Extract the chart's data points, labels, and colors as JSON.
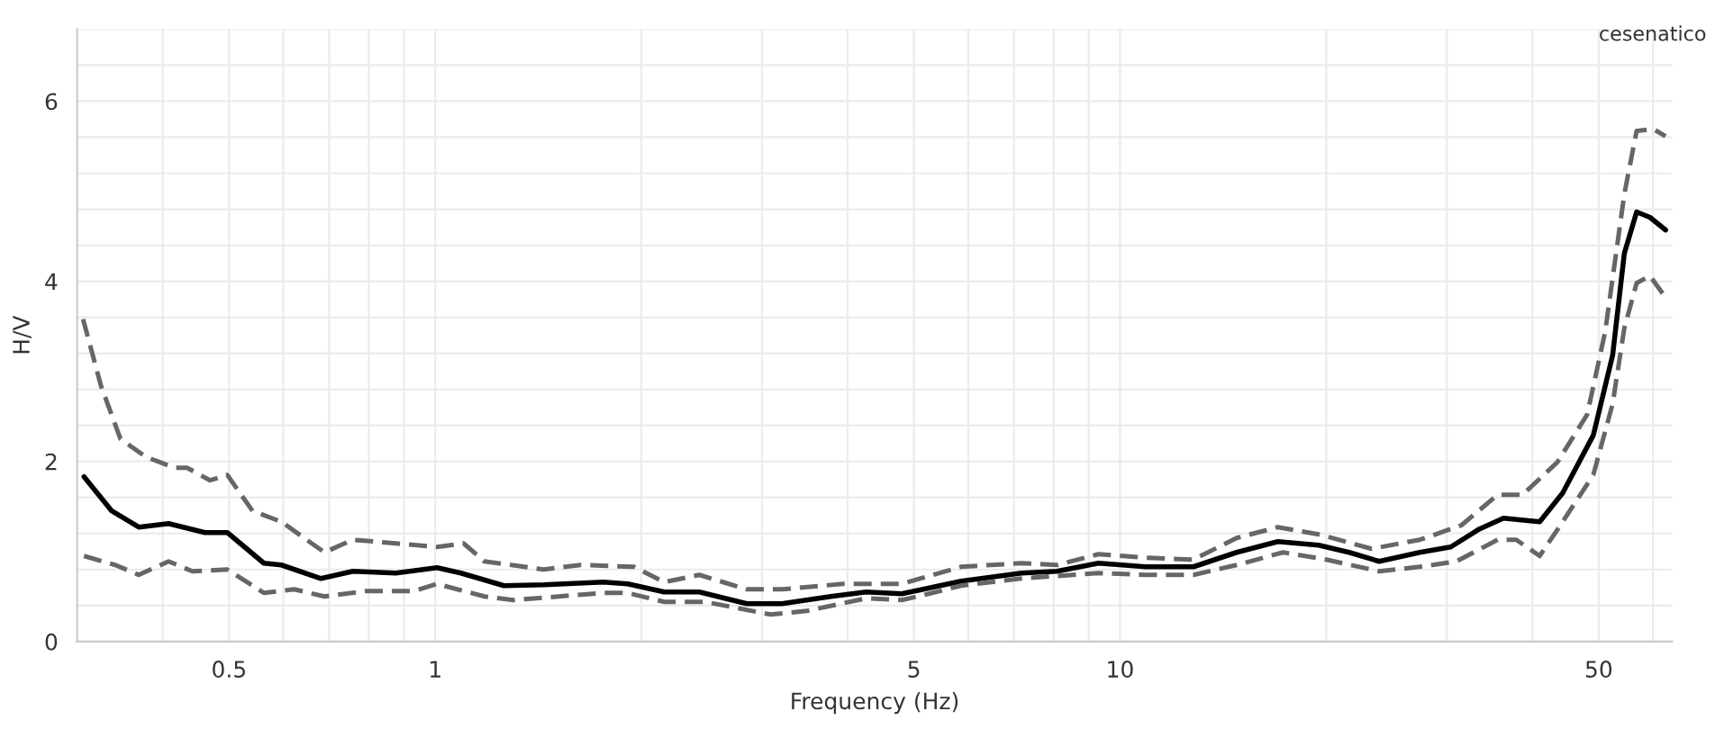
{
  "chart_data": {
    "type": "line",
    "xlabel": "Frequency (Hz)",
    "ylabel": "H/V",
    "log": "x",
    "grid": true,
    "xlim": [
      0.3,
      64
    ],
    "ylim": [
      0,
      6.8
    ],
    "xticks": [
      {
        "value": 0.4,
        "label": null
      },
      0.5,
      {
        "value": 0.6,
        "label": null
      },
      {
        "value": 0.7,
        "label": null
      },
      {
        "value": 0.8,
        "label": null
      },
      {
        "value": 0.9,
        "label": null
      },
      1,
      {
        "value": 2,
        "label": null
      },
      {
        "value": 3,
        "label": null
      },
      {
        "value": 4,
        "label": null
      },
      5,
      {
        "value": 6,
        "label": null
      },
      {
        "value": 7,
        "label": null
      },
      {
        "value": 8,
        "label": null
      },
      {
        "value": 9,
        "label": null
      },
      10,
      {
        "value": 20,
        "label": null
      },
      {
        "value": 30,
        "label": null
      },
      {
        "value": 40,
        "label": null
      },
      50,
      {
        "value": 60,
        "label": null
      }
    ],
    "yticks": [
      0,
      {
        "value": 0.4,
        "label": null
      },
      {
        "value": 0.8,
        "label": null
      },
      {
        "value": 1.2,
        "label": null
      },
      {
        "value": 1.6,
        "label": null
      },
      2,
      {
        "value": 2.4,
        "label": null
      },
      {
        "value": 2.8,
        "label": null
      },
      {
        "value": 3.2,
        "label": null
      },
      {
        "value": 3.6,
        "label": null
      },
      4,
      {
        "value": 4.4,
        "label": null
      },
      {
        "value": 4.8,
        "label": null
      },
      {
        "value": 5.2,
        "label": null
      },
      {
        "value": 5.6,
        "label": null
      },
      6,
      {
        "value": 6.4,
        "label": null
      },
      {
        "value": 6.8,
        "label": null
      }
    ],
    "annotations": [
      "cesenatico"
    ],
    "series": [
      {
        "color": "#666666",
        "line_style": "dashed",
        "x": [
          0.306,
          0.325,
          0.347,
          0.378,
          0.416,
          0.434,
          0.469,
          0.497,
          0.541,
          0.596,
          0.689,
          0.758,
          0.876,
          1.006,
          1.1,
          1.18,
          1.44,
          1.63,
          1.95,
          2.16,
          2.43,
          2.85,
          3.21,
          3.94,
          4.8,
          5.86,
          7.18,
          8.09,
          9.3,
          10.9,
          12.8,
          14.8,
          17.0,
          19.5,
          23.3,
          27.4,
          31.5,
          35.6,
          38.7,
          43.5,
          48.1,
          51.1,
          54.5,
          56.8,
          60.1,
          62.6
        ],
        "values": [
          3.58,
          2.84,
          2.25,
          2.05,
          1.93,
          1.93,
          1.79,
          1.85,
          1.45,
          1.33,
          0.99,
          1.13,
          1.09,
          1.05,
          1.09,
          0.89,
          0.8,
          0.85,
          0.83,
          0.66,
          0.74,
          0.58,
          0.58,
          0.64,
          0.64,
          0.83,
          0.87,
          0.85,
          0.97,
          0.93,
          0.91,
          1.15,
          1.27,
          1.19,
          1.03,
          1.13,
          1.29,
          1.63,
          1.63,
          1.99,
          2.52,
          3.44,
          4.97,
          5.67,
          5.69,
          5.61
        ]
      },
      {
        "color": "#000000",
        "line_style": "solid",
        "x": [
          0.307,
          0.337,
          0.369,
          0.408,
          0.461,
          0.497,
          0.562,
          0.596,
          0.681,
          0.758,
          0.876,
          1.006,
          1.09,
          1.26,
          1.44,
          1.76,
          1.91,
          2.16,
          2.43,
          2.85,
          3.21,
          3.78,
          4.26,
          4.8,
          5.86,
          7.18,
          8.09,
          9.3,
          10.9,
          12.8,
          14.8,
          17.0,
          19.5,
          21.6,
          23.9,
          27.4,
          30.4,
          33.5,
          36.3,
          41.0,
          44.3,
          49.1,
          52.4,
          54.5,
          56.8,
          59.4,
          62.6
        ],
        "values": [
          1.83,
          1.45,
          1.27,
          1.31,
          1.21,
          1.21,
          0.87,
          0.85,
          0.7,
          0.78,
          0.76,
          0.82,
          0.76,
          0.62,
          0.63,
          0.66,
          0.64,
          0.55,
          0.55,
          0.42,
          0.42,
          0.5,
          0.55,
          0.53,
          0.67,
          0.76,
          0.78,
          0.87,
          0.83,
          0.83,
          0.99,
          1.11,
          1.07,
          0.99,
          0.89,
          0.99,
          1.05,
          1.25,
          1.37,
          1.33,
          1.65,
          2.29,
          3.18,
          4.31,
          4.77,
          4.71,
          4.57
        ]
      },
      {
        "color": "#666666",
        "line_style": "dashed",
        "x": [
          0.307,
          0.341,
          0.369,
          0.408,
          0.442,
          0.497,
          0.562,
          0.622,
          0.689,
          0.791,
          0.93,
          1.006,
          1.18,
          1.3,
          1.76,
          1.91,
          2.16,
          2.48,
          3.09,
          3.49,
          4.26,
          4.8,
          5.32,
          5.86,
          7.18,
          9.3,
          10.9,
          12.8,
          14.8,
          17.3,
          20.0,
          23.9,
          27.4,
          31.0,
          35.6,
          37.9,
          41.0,
          44.3,
          49.1,
          52.4,
          54.5,
          56.8,
          59.4,
          62.6
        ],
        "values": [
          0.95,
          0.85,
          0.74,
          0.89,
          0.78,
          0.8,
          0.54,
          0.58,
          0.5,
          0.56,
          0.56,
          0.64,
          0.5,
          0.46,
          0.54,
          0.54,
          0.44,
          0.44,
          0.3,
          0.34,
          0.48,
          0.46,
          0.54,
          0.62,
          0.7,
          0.76,
          0.74,
          0.74,
          0.85,
          0.99,
          0.91,
          0.78,
          0.83,
          0.89,
          1.13,
          1.13,
          0.95,
          1.33,
          1.85,
          2.64,
          3.48,
          3.98,
          4.06,
          3.82
        ]
      }
    ]
  }
}
